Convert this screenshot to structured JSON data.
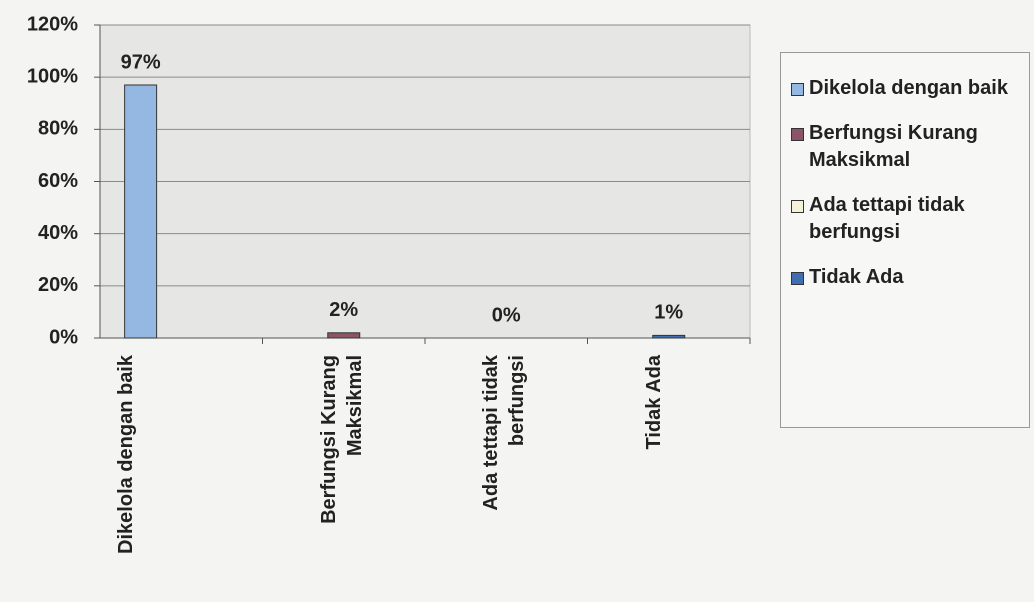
{
  "chart_data": {
    "type": "bar",
    "categories": [
      "Dikelola dengan baik",
      "Berfungsi Kurang Maksikmal",
      "Ada tettapi tidak berfungsi",
      "Tidak Ada"
    ],
    "values": [
      97,
      2,
      0,
      1
    ],
    "value_labels": [
      "97%",
      "2%",
      "0%",
      "1%"
    ],
    "colors": [
      "#95b8e3",
      "#8c5468",
      "#f3f1d8",
      "#3f6fb0"
    ],
    "ylim": [
      0,
      120
    ],
    "yticks": [
      {
        "value": 0,
        "label": "0%"
      },
      {
        "value": 20,
        "label": "20%"
      },
      {
        "value": 40,
        "label": "40%"
      },
      {
        "value": 60,
        "label": "60%"
      },
      {
        "value": 80,
        "label": "80%"
      },
      {
        "value": 100,
        "label": "100%"
      },
      {
        "value": 120,
        "label": "120%"
      }
    ],
    "grid": true,
    "legend": "right"
  }
}
